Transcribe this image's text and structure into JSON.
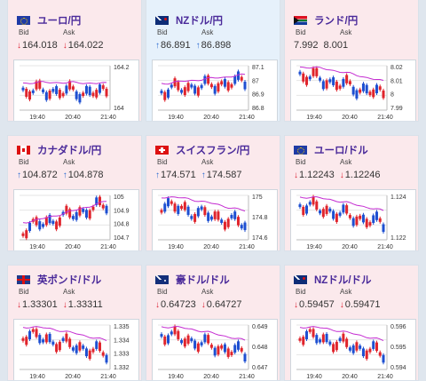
{
  "labels": {
    "bid": "Bid",
    "ask": "Ask"
  },
  "time_labels": [
    "19:40",
    "20:40",
    "21:40"
  ],
  "cards": [
    {
      "pair": "ユーロ/円",
      "dir": "down",
      "bid": "164.018",
      "ask": "164.022",
      "flag": "eu",
      "ticks": [
        "164.2",
        "164"
      ],
      "trend": "zig",
      "bg": "pink"
    },
    {
      "pair": "NZドル/円",
      "dir": "up",
      "bid": "86.891",
      "ask": "86.898",
      "flag": "nz",
      "ticks": [
        "87.1",
        "87",
        "86.9",
        "86.8"
      ],
      "trend": "upish",
      "bg": "blue"
    },
    {
      "pair": "ランド/円",
      "dir": "none",
      "bid": "7.992",
      "ask": "8.001",
      "flag": "za",
      "ticks": [
        "8.02",
        "8.01",
        "8",
        "7.99"
      ],
      "trend": "down",
      "bg": "pink"
    },
    {
      "pair": "カナダドル/円",
      "dir": "up",
      "bid": "104.872",
      "ask": "104.878",
      "flag": "ca",
      "ticks": [
        "105",
        "104.9",
        "104.8",
        "104.7"
      ],
      "trend": "up",
      "bg": "pink"
    },
    {
      "pair": "スイスフラン/円",
      "dir": "up",
      "bid": "174.571",
      "ask": "174.587",
      "flag": "ch",
      "ticks": [
        "175",
        "174.8",
        "174.6"
      ],
      "trend": "down",
      "bg": "pink"
    },
    {
      "pair": "ユーロ/ドル",
      "dir": "down",
      "bid": "1.12243",
      "ask": "1.12246",
      "flag": "eu",
      "ticks": [
        "1.124",
        "1.122"
      ],
      "trend": "down",
      "bg": "pink"
    },
    {
      "pair": "英ポンド/ドル",
      "dir": "down",
      "bid": "1.33301",
      "ask": "1.33311",
      "flag": "uk",
      "ticks": [
        "1.335",
        "1.334",
        "1.333",
        "1.332"
      ],
      "trend": "down",
      "bg": "pink"
    },
    {
      "pair": "豪ドル/ドル",
      "dir": "down",
      "bid": "0.64723",
      "ask": "0.64727",
      "flag": "au",
      "ticks": [
        "0.649",
        "0.648",
        "0.647"
      ],
      "trend": "down",
      "bg": "pink"
    },
    {
      "pair": "NZドル/ドル",
      "dir": "down",
      "bid": "0.59457",
      "ask": "0.59471",
      "flag": "nz",
      "ticks": [
        "0.596",
        "0.595",
        "0.594"
      ],
      "trend": "down",
      "bg": "pink"
    }
  ]
}
